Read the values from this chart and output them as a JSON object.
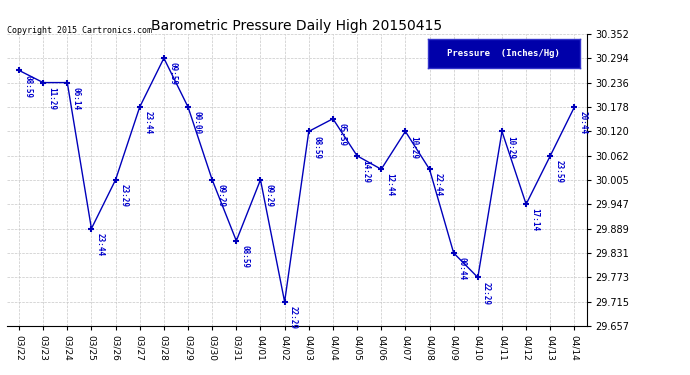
{
  "title": "Barometric Pressure Daily High 20150415",
  "ylabel": "Pressure  (Inches/Hg)",
  "copyright_text": "Copyright 2015 Cartronics.com",
  "background_color": "#ffffff",
  "plot_bg_color": "#ffffff",
  "grid_color": "#c8c8c8",
  "line_color": "#0000bb",
  "marker_color": "#000000",
  "text_color": "#0000cc",
  "ylim_min": 29.657,
  "ylim_max": 30.352,
  "yticks": [
    29.657,
    29.715,
    29.773,
    29.831,
    29.889,
    29.947,
    30.005,
    30.062,
    30.12,
    30.178,
    30.236,
    30.294,
    30.352
  ],
  "dates": [
    "03/22",
    "03/23",
    "03/24",
    "03/25",
    "03/26",
    "03/27",
    "03/28",
    "03/29",
    "03/30",
    "03/31",
    "04/01",
    "04/02",
    "04/03",
    "04/04",
    "04/05",
    "04/06",
    "04/07",
    "04/08",
    "04/09",
    "04/10",
    "04/11",
    "04/12",
    "04/13",
    "04/14"
  ],
  "values": [
    30.265,
    30.236,
    30.236,
    29.889,
    30.005,
    30.178,
    30.294,
    30.178,
    30.005,
    29.86,
    30.005,
    29.715,
    30.12,
    30.15,
    30.062,
    30.03,
    30.12,
    30.03,
    29.831,
    29.773,
    30.12,
    29.947,
    30.062,
    30.178
  ],
  "time_labels": [
    "08:59",
    "11:29",
    "06:14",
    "23:44",
    "23:29",
    "23:44",
    "09:59",
    "00:00",
    "09:29",
    "08:59",
    "09:29",
    "22:29",
    "08:59",
    "05:59",
    "14:29",
    "12:44",
    "10:29",
    "22:44",
    "00:44",
    "22:29",
    "10:29",
    "17:14",
    "23:59",
    "20:44"
  ]
}
